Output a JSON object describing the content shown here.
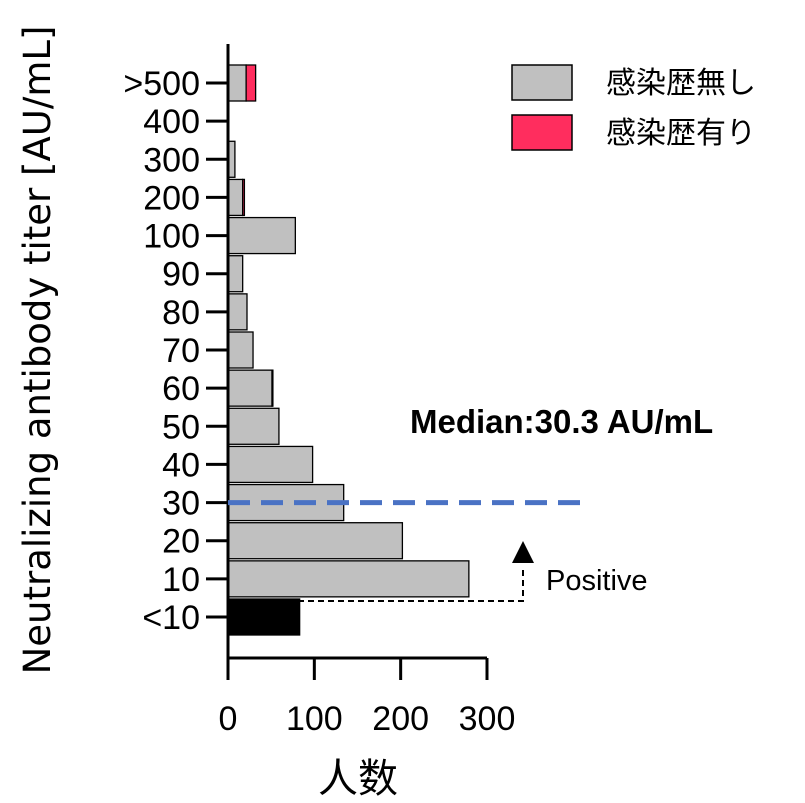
{
  "chart_data": {
    "type": "bar",
    "orientation": "horizontal",
    "stacked": true,
    "categories": [
      "<10",
      "10",
      "20",
      "30",
      "40",
      "50",
      "60",
      "70",
      "80",
      "90",
      "100",
      "200",
      "300",
      "400",
      ">500"
    ],
    "series": [
      {
        "name": "感染歴無し",
        "color": "#c0c0c0",
        "values": [
          83,
          279,
          202,
          134,
          98,
          59,
          51,
          29,
          22,
          17,
          78,
          17,
          8,
          1,
          21
        ]
      },
      {
        "name": "感染歴有り",
        "color": "#ff2d5e",
        "values": [
          0,
          0,
          0,
          0,
          0,
          0,
          1,
          0,
          0,
          0,
          0,
          2,
          0,
          0,
          11
        ]
      }
    ],
    "below_threshold_color": "#000000",
    "xlabel": "人数",
    "ylabel": "Neutralizing antibody titer [AU/mL]",
    "xlim": [
      0,
      300
    ],
    "x_ticks": [
      0,
      100,
      200,
      300
    ],
    "grid": false,
    "legend_position": "top-right",
    "median": {
      "label": "Median:30.3 AU/mL",
      "category": "30",
      "color": "#4a72c4"
    },
    "positive": {
      "label": "Positive"
    }
  }
}
